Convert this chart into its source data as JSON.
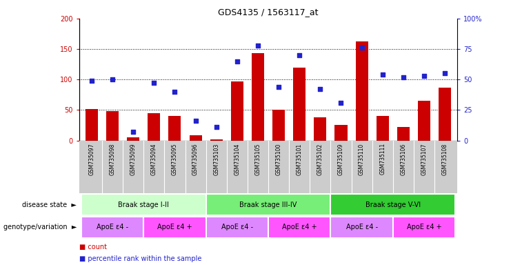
{
  "title": "GDS4135 / 1563117_at",
  "samples": [
    "GSM735097",
    "GSM735098",
    "GSM735099",
    "GSM735094",
    "GSM735095",
    "GSM735096",
    "GSM735103",
    "GSM735104",
    "GSM735105",
    "GSM735100",
    "GSM735101",
    "GSM735102",
    "GSM735109",
    "GSM735110",
    "GSM735111",
    "GSM735106",
    "GSM735107",
    "GSM735108"
  ],
  "counts": [
    52,
    48,
    5,
    45,
    40,
    8,
    2,
    97,
    143,
    50,
    120,
    38,
    26,
    162,
    40,
    22,
    65,
    87
  ],
  "percentiles": [
    49,
    50,
    7,
    47,
    40,
    16,
    11,
    65,
    78,
    44,
    70,
    42,
    31,
    76,
    54,
    52,
    53,
    55
  ],
  "bar_color": "#cc0000",
  "dot_color": "#2222cc",
  "ylim_left": [
    0,
    200
  ],
  "ylim_right": [
    0,
    100
  ],
  "yticks_left": [
    0,
    50,
    100,
    150,
    200
  ],
  "yticks_right": [
    0,
    25,
    50,
    75,
    100
  ],
  "yticklabels_right": [
    "0",
    "25",
    "50",
    "75",
    "100%"
  ],
  "disease_state_groups": [
    {
      "label": "Braak stage I-II",
      "start": 0,
      "end": 6,
      "color": "#ccffcc"
    },
    {
      "label": "Braak stage III-IV",
      "start": 6,
      "end": 12,
      "color": "#77ee77"
    },
    {
      "label": "Braak stage V-VI",
      "start": 12,
      "end": 18,
      "color": "#33cc33"
    }
  ],
  "genotype_groups": [
    {
      "label": "ApoE ε4 -",
      "start": 0,
      "end": 3,
      "color": "#dd88ff"
    },
    {
      "label": "ApoE ε4 +",
      "start": 3,
      "end": 6,
      "color": "#ff55ff"
    },
    {
      "label": "ApoE ε4 -",
      "start": 6,
      "end": 9,
      "color": "#dd88ff"
    },
    {
      "label": "ApoE ε4 +",
      "start": 9,
      "end": 12,
      "color": "#ff55ff"
    },
    {
      "label": "ApoE ε4 -",
      "start": 12,
      "end": 15,
      "color": "#dd88ff"
    },
    {
      "label": "ApoE ε4 +",
      "start": 15,
      "end": 18,
      "color": "#ff55ff"
    }
  ],
  "label_disease_state": "disease state",
  "label_genotype": "genotype/variation",
  "label_count": "count",
  "label_percentile": "percentile rank within the sample",
  "left_tick_color": "#cc0000",
  "right_tick_color": "#2222cc",
  "xlabel_bg": "#cccccc",
  "grid_color": "black"
}
